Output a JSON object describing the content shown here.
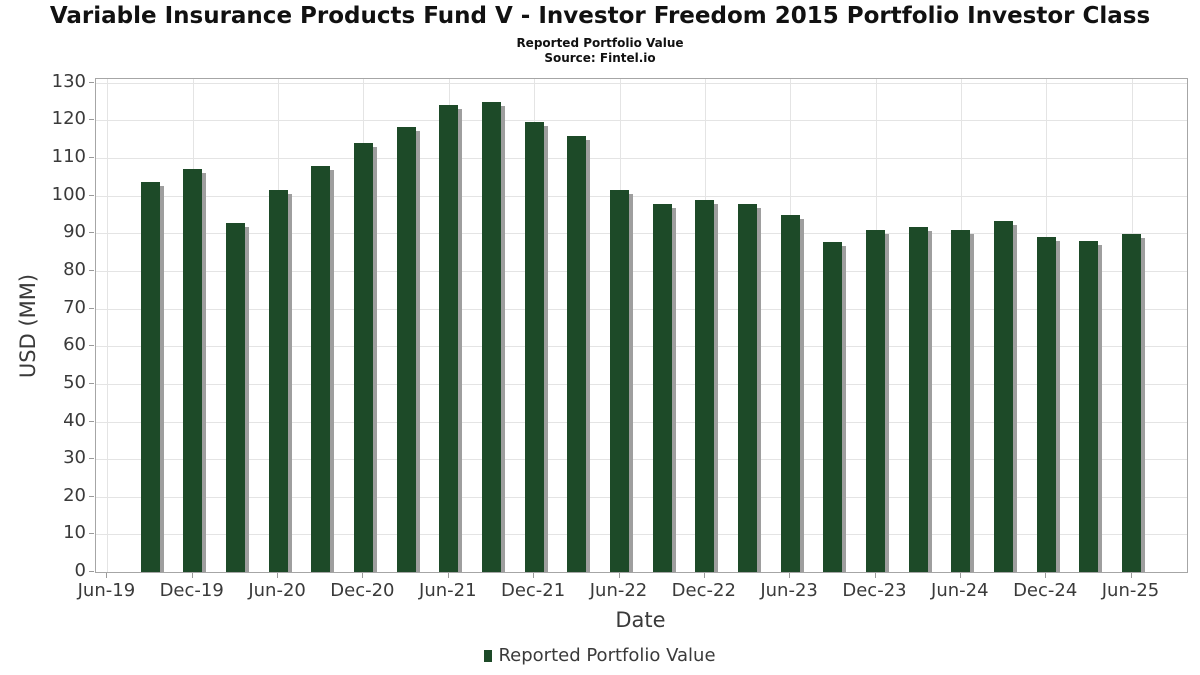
{
  "header": {
    "title": "Variable Insurance Products Fund V - Investor Freedom 2015 Portfolio Investor Class",
    "subtitle": "Reported Portfolio Value",
    "source": "Source: Fintel.io"
  },
  "legend": {
    "label": "Reported Portfolio Value"
  },
  "colors": {
    "bar": "#1d4a28",
    "bar_shadow": "#9e9e9e",
    "grid": "#e4e4e4",
    "axis_border": "#a6a6a6",
    "tick_text": "#3a3a3a"
  },
  "chart_data": {
    "type": "bar",
    "title": "Variable Insurance Products Fund V - Investor Freedom 2015 Portfolio Investor Class",
    "subtitle": "Reported Portfolio Value",
    "source": "Source: Fintel.io",
    "xlabel": "Date",
    "ylabel": "USD (MM)",
    "ylim": [
      0,
      130
    ],
    "ytick_step": 10,
    "grid": true,
    "legend_position": "bottom-center",
    "x_tick_labels": [
      "Jun-19",
      "Dec-19",
      "Jun-20",
      "Dec-20",
      "Jun-21",
      "Dec-21",
      "Jun-22",
      "Dec-22",
      "Jun-23",
      "Dec-23",
      "Jun-24",
      "Dec-24",
      "Jun-25"
    ],
    "categories": [
      "Sep-19",
      "Dec-19",
      "Mar-20",
      "Jun-20",
      "Sep-20",
      "Dec-20",
      "Mar-21",
      "Jun-21",
      "Sep-21",
      "Dec-21",
      "Mar-22",
      "Jun-22",
      "Sep-22",
      "Dec-22",
      "Mar-23",
      "Jun-23",
      "Sep-23",
      "Dec-23",
      "Mar-24",
      "Jun-24",
      "Sep-24",
      "Dec-24",
      "Mar-25",
      "Jun-25"
    ],
    "series": [
      {
        "name": "Reported Portfolio Value",
        "values": [
          103.7,
          107.2,
          92.8,
          101.6,
          107.9,
          113.9,
          118.2,
          124.2,
          125.0,
          119.6,
          115.8,
          101.5,
          97.8,
          98.9,
          97.8,
          95.0,
          87.8,
          90.8,
          91.7,
          90.9,
          93.2,
          88.9,
          87.9,
          89.8
        ]
      }
    ]
  }
}
